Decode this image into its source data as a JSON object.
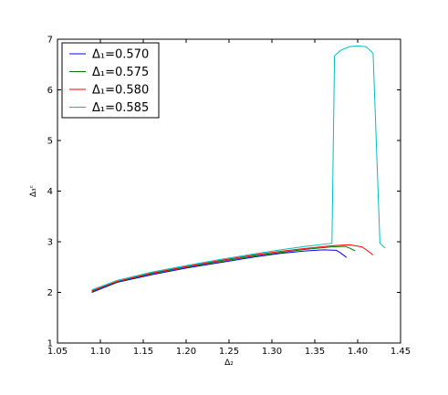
{
  "chart_data": {
    "type": "line",
    "title": "",
    "xlabel": "Δ₂",
    "ylabel": "Δ₃ᶜ",
    "xlim": [
      1.05,
      1.45
    ],
    "ylim": [
      1,
      7
    ],
    "xticks": [
      "1.05",
      "1.10",
      "1.15",
      "1.20",
      "1.25",
      "1.30",
      "1.35",
      "1.40",
      "1.45"
    ],
    "yticks": [
      "1",
      "2",
      "3",
      "4",
      "5",
      "6",
      "7"
    ],
    "grid": false,
    "legend_position": "upper-left",
    "series": [
      {
        "name": "Δ₁=0.570",
        "color": "#0000ff",
        "x": [
          1.09,
          1.12,
          1.16,
          1.2,
          1.24,
          1.28,
          1.31,
          1.34,
          1.36,
          1.375,
          1.38,
          1.387
        ],
        "y": [
          2.0,
          2.2,
          2.35,
          2.48,
          2.59,
          2.7,
          2.77,
          2.82,
          2.84,
          2.83,
          2.78,
          2.69
        ]
      },
      {
        "name": "Δ₁=0.575",
        "color": "#008000",
        "x": [
          1.09,
          1.12,
          1.16,
          1.2,
          1.24,
          1.28,
          1.31,
          1.34,
          1.37,
          1.385,
          1.39,
          1.397
        ],
        "y": [
          2.02,
          2.21,
          2.37,
          2.5,
          2.61,
          2.72,
          2.79,
          2.85,
          2.9,
          2.91,
          2.88,
          2.82
        ]
      },
      {
        "name": "Δ₁=0.580",
        "color": "#ff0000",
        "x": [
          1.09,
          1.12,
          1.16,
          1.2,
          1.24,
          1.28,
          1.31,
          1.34,
          1.37,
          1.39,
          1.405,
          1.41,
          1.418
        ],
        "y": [
          2.03,
          2.22,
          2.38,
          2.51,
          2.63,
          2.74,
          2.81,
          2.87,
          2.92,
          2.94,
          2.9,
          2.84,
          2.74
        ]
      },
      {
        "name": "Δ₁=0.585",
        "color": "#00bfbf",
        "x": [
          1.09,
          1.12,
          1.16,
          1.2,
          1.24,
          1.28,
          1.31,
          1.34,
          1.37,
          1.373,
          1.38,
          1.39,
          1.4,
          1.41,
          1.418,
          1.426,
          1.432
        ],
        "y": [
          2.05,
          2.24,
          2.4,
          2.53,
          2.65,
          2.76,
          2.84,
          2.91,
          2.97,
          6.67,
          6.78,
          6.85,
          6.87,
          6.85,
          6.72,
          2.97,
          2.88
        ]
      }
    ]
  }
}
